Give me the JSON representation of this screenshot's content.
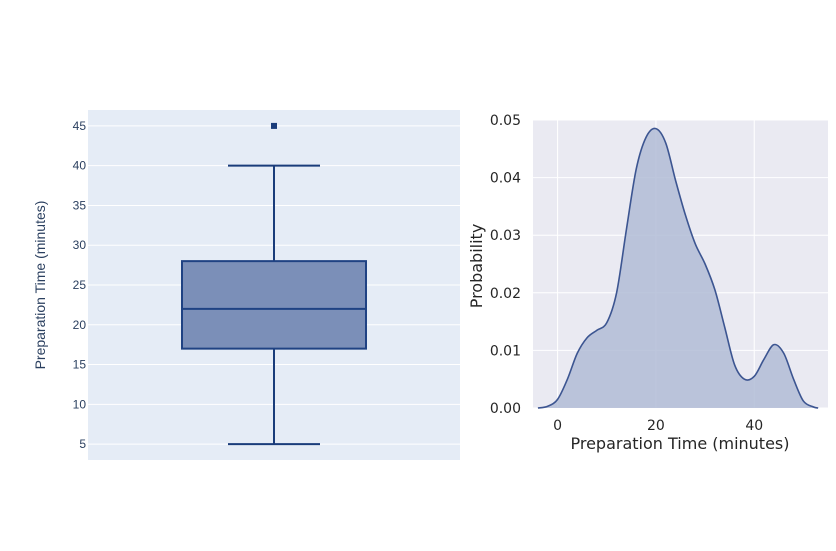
{
  "chart_data": [
    {
      "type": "box",
      "ylabel": "Preparation Time (minutes)",
      "ylim": [
        3,
        47
      ],
      "yticks": [
        5,
        10,
        15,
        20,
        25,
        30,
        35,
        40,
        45
      ],
      "stats": {
        "min": 5,
        "q1": 17,
        "median": 22,
        "q3": 28,
        "max": 40
      },
      "outliers": [
        45
      ],
      "colors": {
        "plot_bg": "#e5ecf6",
        "grid": "#ffffff",
        "box_fill": "#7b8fb8",
        "box_line": "#1f4283",
        "whisker": "#1a3c7a"
      }
    },
    {
      "type": "area",
      "subtype": "kde",
      "xlabel": "Preparation Time (minutes)",
      "ylabel": "Probability",
      "xlim": [
        -5,
        55
      ],
      "ylim": [
        0,
        0.05
      ],
      "xticks": [
        0,
        20,
        40
      ],
      "ytick_labels": [
        "0.00",
        "0.01",
        "0.02",
        "0.03",
        "0.04",
        "0.05"
      ],
      "yticks": [
        0,
        0.01,
        0.02,
        0.03,
        0.04,
        0.05
      ],
      "x": [
        -4,
        -2,
        0,
        2,
        4,
        6,
        8,
        10,
        12,
        14,
        16,
        18,
        20,
        22,
        24,
        26,
        28,
        30,
        32,
        34,
        36,
        38,
        40,
        42,
        44,
        46,
        48,
        50,
        52,
        53
      ],
      "y": [
        0,
        0.0003,
        0.0015,
        0.005,
        0.0095,
        0.0122,
        0.0135,
        0.0148,
        0.02,
        0.031,
        0.0415,
        0.047,
        0.0485,
        0.046,
        0.0395,
        0.0335,
        0.0285,
        0.025,
        0.0205,
        0.014,
        0.0075,
        0.005,
        0.0055,
        0.0085,
        0.011,
        0.0095,
        0.005,
        0.0012,
        0.0002,
        0
      ],
      "colors": {
        "plot_bg": "#eaeaf2",
        "grid": "#ffffff",
        "fill": "#b2bcd6",
        "line": "#3c5591"
      }
    }
  ]
}
